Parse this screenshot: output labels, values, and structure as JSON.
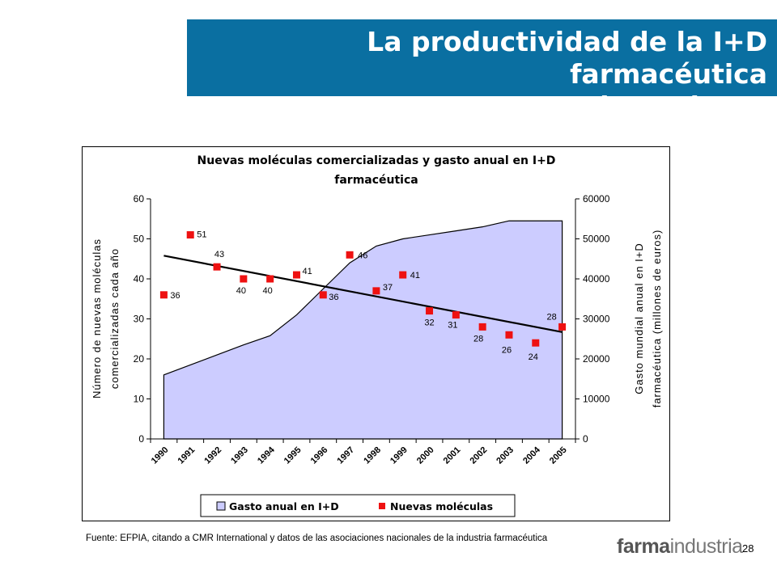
{
  "slide": {
    "title_line1": "La productividad de la I+D farmacéutica",
    "title_line2": "es decreciente",
    "source": "Fuente: EFPIA, citando a CMR International y datos de las asociaciones nacionales de la industria farmacéutica",
    "logo_bold": "farma",
    "logo_light": "industria",
    "page_number": "28",
    "banner_color": "#0a6fa1"
  },
  "chart_data": {
    "type": "area+scatter",
    "title_line1": "Nuevas moléculas comercializadas y gasto anual en I+D",
    "title_line2": "farmacéutica",
    "ylabel_left_line1": "Número de nuevas moléculas",
    "ylabel_left_line2": "comercializadas cada año",
    "ylabel_right_line1": "Gasto mundial anual en I+D",
    "ylabel_right_line2": "farmacéutica (millones de euros)",
    "categories": [
      "1990",
      "1991",
      "1992",
      "1993",
      "1994",
      "1995",
      "1996",
      "1997",
      "1998",
      "1999",
      "2000",
      "2001",
      "2002",
      "2003",
      "2004",
      "2005"
    ],
    "ylim_left": [
      0,
      60
    ],
    "yticks_left": [
      "0",
      "10",
      "20",
      "30",
      "40",
      "50",
      "60"
    ],
    "ylim_right": [
      0,
      60000
    ],
    "yticks_right": [
      "0",
      "10000",
      "20000",
      "30000",
      "40000",
      "50000",
      "60000"
    ],
    "legend_position": "bottom",
    "series": [
      {
        "name": "Gasto anual en I+D",
        "type": "area",
        "axis": "right",
        "color": "#ccccff",
        "values": [
          16000,
          18500,
          21000,
          23500,
          25800,
          31000,
          37500,
          44000,
          48200,
          50000,
          51000,
          52000,
          53000,
          54500,
          54500,
          54500
        ]
      },
      {
        "name": "Nuevas moléculas",
        "type": "scatter",
        "axis": "left",
        "color": "#ee1111",
        "values": [
          36,
          51,
          43,
          40,
          40,
          41,
          36,
          46,
          37,
          41,
          32,
          31,
          28,
          26,
          24,
          28
        ],
        "labels": [
          "36",
          "51",
          "43",
          "40",
          "40",
          "41",
          "36",
          "46",
          "37",
          "41",
          "32",
          "31",
          "28",
          "26",
          "24",
          "28"
        ]
      }
    ],
    "trendline": {
      "start": 45.8,
      "end": 26.7,
      "color": "#000000"
    }
  }
}
